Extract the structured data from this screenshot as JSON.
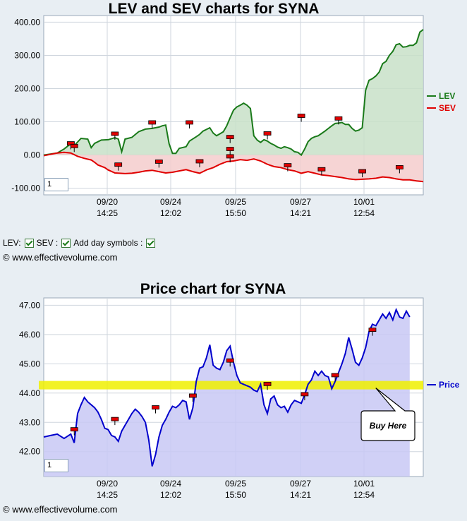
{
  "chart_data": [
    {
      "type": "line",
      "title": "LEV and SEV charts for SYNA",
      "x_tick_labels": [
        [
          "09/20",
          "14:25"
        ],
        [
          "09/24",
          "12:02"
        ],
        [
          "09/25",
          "15:50"
        ],
        [
          "09/27",
          "14:21"
        ],
        [
          "10/01",
          "12:54"
        ]
      ],
      "ylim": [
        -120,
        420
      ],
      "y_ticks": [
        "400.00",
        "300.00",
        "200.00",
        "100.00",
        "0.00",
        "-100.00"
      ],
      "legend": [
        "LEV",
        "SEV"
      ],
      "legend_position": "right",
      "grid": true,
      "input_value": "1",
      "series": [
        {
          "name": "LEV",
          "color": "#1a7a1a",
          "fill": "#c8e0c8",
          "values": [
            [
              0,
              0
            ],
            [
              4,
              6
            ],
            [
              6,
              18
            ],
            [
              8,
              34
            ],
            [
              9,
              28
            ],
            [
              11,
              50
            ],
            [
              13,
              48
            ],
            [
              14,
              22
            ],
            [
              15,
              35
            ],
            [
              17,
              45
            ],
            [
              19,
              46
            ],
            [
              21,
              52
            ],
            [
              22,
              48
            ],
            [
              23,
              10
            ],
            [
              24,
              48
            ],
            [
              26,
              53
            ],
            [
              28,
              70
            ],
            [
              30,
              78
            ],
            [
              32,
              80
            ],
            [
              34,
              84
            ],
            [
              35,
              88
            ],
            [
              36,
              90
            ],
            [
              37,
              34
            ],
            [
              38,
              5
            ],
            [
              39,
              5
            ],
            [
              40,
              20
            ],
            [
              42,
              25
            ],
            [
              43,
              42
            ],
            [
              45,
              55
            ],
            [
              46,
              62
            ],
            [
              47,
              72
            ],
            [
              49,
              82
            ],
            [
              50,
              66
            ],
            [
              51,
              58
            ],
            [
              52,
              64
            ],
            [
              53,
              70
            ],
            [
              54,
              88
            ],
            [
              55,
              112
            ],
            [
              56,
              135
            ],
            [
              57,
              145
            ],
            [
              58,
              150
            ],
            [
              59,
              156
            ],
            [
              60,
              150
            ],
            [
              61,
              140
            ],
            [
              62,
              58
            ],
            [
              63,
              45
            ],
            [
              64,
              38
            ],
            [
              65,
              46
            ],
            [
              66,
              42
            ],
            [
              67,
              35
            ],
            [
              68,
              30
            ],
            [
              69,
              24
            ],
            [
              70,
              20
            ],
            [
              71,
              25
            ],
            [
              72,
              22
            ],
            [
              73,
              18
            ],
            [
              74,
              10
            ],
            [
              75,
              8
            ],
            [
              76,
              0
            ],
            [
              77,
              18
            ],
            [
              78,
              40
            ],
            [
              79,
              50
            ],
            [
              80,
              55
            ],
            [
              81,
              58
            ],
            [
              82,
              65
            ],
            [
              83,
              72
            ],
            [
              84,
              80
            ],
            [
              85,
              88
            ],
            [
              86,
              95
            ],
            [
              87,
              96
            ],
            [
              88,
              98
            ],
            [
              89,
              92
            ],
            [
              90,
              92
            ],
            [
              91,
              80
            ],
            [
              92,
              72
            ],
            [
              93,
              75
            ],
            [
              94,
              82
            ],
            [
              95,
              195
            ],
            [
              96,
              225
            ],
            [
              97,
              230
            ],
            [
              98,
              238
            ],
            [
              99,
              250
            ],
            [
              100,
              275
            ],
            [
              101,
              282
            ],
            [
              102,
              300
            ],
            [
              103,
              312
            ],
            [
              104,
              332
            ],
            [
              105,
              335
            ],
            [
              106,
              325
            ],
            [
              107,
              326
            ],
            [
              108,
              330
            ],
            [
              109,
              330
            ],
            [
              110,
              338
            ],
            [
              111,
              370
            ],
            [
              112,
              378
            ]
          ]
        },
        {
          "name": "SEV",
          "color": "#e00000",
          "fill": "#f4cccc",
          "values": [
            [
              0,
              -2
            ],
            [
              4,
              6
            ],
            [
              6,
              8
            ],
            [
              8,
              6
            ],
            [
              10,
              -4
            ],
            [
              12,
              -10
            ],
            [
              14,
              -15
            ],
            [
              15,
              -22
            ],
            [
              16,
              -30
            ],
            [
              18,
              -38
            ],
            [
              19,
              -45
            ],
            [
              21,
              -54
            ],
            [
              24,
              -56
            ],
            [
              26,
              -55
            ],
            [
              28,
              -52
            ],
            [
              30,
              -48
            ],
            [
              32,
              -46
            ],
            [
              34,
              -50
            ],
            [
              36,
              -54
            ],
            [
              38,
              -52
            ],
            [
              40,
              -48
            ],
            [
              42,
              -44
            ],
            [
              44,
              -50
            ],
            [
              46,
              -55
            ],
            [
              47,
              -50
            ],
            [
              48,
              -45
            ],
            [
              50,
              -38
            ],
            [
              52,
              -28
            ],
            [
              54,
              -20
            ],
            [
              56,
              -18
            ],
            [
              58,
              -14
            ],
            [
              60,
              -16
            ],
            [
              62,
              -12
            ],
            [
              64,
              -18
            ],
            [
              66,
              -28
            ],
            [
              68,
              -35
            ],
            [
              70,
              -38
            ],
            [
              72,
              -44
            ],
            [
              74,
              -48
            ],
            [
              76,
              -55
            ],
            [
              78,
              -50
            ],
            [
              80,
              -55
            ],
            [
              82,
              -60
            ],
            [
              84,
              -62
            ],
            [
              86,
              -65
            ],
            [
              88,
              -68
            ],
            [
              90,
              -72
            ],
            [
              92,
              -74
            ],
            [
              94,
              -73
            ],
            [
              96,
              -72
            ],
            [
              98,
              -70
            ],
            [
              100,
              -66
            ],
            [
              102,
              -68
            ],
            [
              104,
              -72
            ],
            [
              106,
              -75
            ],
            [
              108,
              -75
            ],
            [
              110,
              -78
            ],
            [
              112,
              -80
            ]
          ]
        }
      ]
    },
    {
      "type": "line",
      "title": "Price chart for SYNA",
      "x_tick_labels": [
        [
          "09/20",
          "14:25"
        ],
        [
          "09/24",
          "12:02"
        ],
        [
          "09/25",
          "15:50"
        ],
        [
          "09/27",
          "14:21"
        ],
        [
          "10/01",
          "12:54"
        ]
      ],
      "ylim": [
        41.15,
        47.25
      ],
      "y_ticks": [
        "47.00",
        "46.00",
        "45.00",
        "44.00",
        "43.00",
        "42.00"
      ],
      "legend": [
        "Price"
      ],
      "legend_position": "right",
      "grid": true,
      "highlight_level": 44.27,
      "callout": "Buy Here",
      "input_value": "1",
      "series": [
        {
          "name": "Price",
          "color": "#0000cc",
          "fill": "#c8c8f4",
          "values": [
            [
              0,
              42.5
            ],
            [
              2,
              42.55
            ],
            [
              4,
              42.6
            ],
            [
              6,
              42.45
            ],
            [
              8,
              42.6
            ],
            [
              9,
              42.3
            ],
            [
              10,
              43.3
            ],
            [
              11,
              43.6
            ],
            [
              12,
              43.85
            ],
            [
              13,
              43.7
            ],
            [
              14,
              43.6
            ],
            [
              15,
              43.5
            ],
            [
              16,
              43.35
            ],
            [
              17,
              43.1
            ],
            [
              18,
              42.8
            ],
            [
              19,
              42.75
            ],
            [
              20,
              42.55
            ],
            [
              21,
              42.5
            ],
            [
              22,
              42.35
            ],
            [
              23,
              42.7
            ],
            [
              24,
              42.9
            ],
            [
              25,
              43.1
            ],
            [
              26,
              43.3
            ],
            [
              27,
              43.45
            ],
            [
              28,
              43.35
            ],
            [
              29,
              43.2
            ],
            [
              30,
              43.0
            ],
            [
              31,
              42.4
            ],
            [
              32,
              41.5
            ],
            [
              33,
              41.9
            ],
            [
              34,
              42.5
            ],
            [
              35,
              42.9
            ],
            [
              36,
              43.1
            ],
            [
              37,
              43.35
            ],
            [
              38,
              43.55
            ],
            [
              39,
              43.5
            ],
            [
              40,
              43.6
            ],
            [
              41,
              43.75
            ],
            [
              42,
              43.7
            ],
            [
              43,
              43.1
            ],
            [
              44,
              43.5
            ],
            [
              45,
              44.4
            ],
            [
              46,
              44.85
            ],
            [
              47,
              44.9
            ],
            [
              48,
              45.2
            ],
            [
              49,
              45.65
            ],
            [
              50,
              44.95
            ],
            [
              51,
              44.85
            ],
            [
              52,
              44.8
            ],
            [
              53,
              45.05
            ],
            [
              54,
              45.45
            ],
            [
              55,
              45.6
            ],
            [
              56,
              45.05
            ],
            [
              57,
              44.6
            ],
            [
              58,
              44.35
            ],
            [
              59,
              44.3
            ],
            [
              60,
              44.25
            ],
            [
              61,
              44.2
            ],
            [
              62,
              44.1
            ],
            [
              63,
              44.05
            ],
            [
              64,
              44.3
            ],
            [
              65,
              43.6
            ],
            [
              66,
              43.3
            ],
            [
              67,
              43.8
            ],
            [
              68,
              43.9
            ],
            [
              69,
              43.6
            ],
            [
              70,
              43.5
            ],
            [
              71,
              43.55
            ],
            [
              72,
              43.35
            ],
            [
              73,
              43.6
            ],
            [
              74,
              43.75
            ],
            [
              75,
              43.7
            ],
            [
              76,
              43.65
            ],
            [
              77,
              43.95
            ],
            [
              78,
              44.3
            ],
            [
              79,
              44.45
            ],
            [
              80,
              44.75
            ],
            [
              81,
              44.6
            ],
            [
              82,
              44.75
            ],
            [
              83,
              44.6
            ],
            [
              84,
              44.55
            ],
            [
              85,
              44.15
            ],
            [
              86,
              44.4
            ],
            [
              87,
              44.7
            ],
            [
              88,
              45.0
            ],
            [
              89,
              45.35
            ],
            [
              90,
              45.9
            ],
            [
              91,
              45.5
            ],
            [
              92,
              45.05
            ],
            [
              93,
              44.95
            ],
            [
              94,
              45.2
            ],
            [
              95,
              45.55
            ],
            [
              96,
              46.1
            ],
            [
              97,
              46.35
            ],
            [
              98,
              46.3
            ],
            [
              99,
              46.5
            ],
            [
              100,
              46.7
            ],
            [
              101,
              46.55
            ],
            [
              102,
              46.75
            ],
            [
              103,
              46.5
            ],
            [
              104,
              46.85
            ],
            [
              105,
              46.6
            ],
            [
              106,
              46.55
            ],
            [
              107,
              46.8
            ],
            [
              108,
              46.6
            ]
          ]
        }
      ]
    }
  ],
  "lev_markers": [
    [
      8,
      34
    ],
    [
      9,
      26
    ],
    [
      21,
      63
    ],
    [
      32,
      97
    ],
    [
      43,
      97
    ],
    [
      55,
      53
    ],
    [
      55,
      17
    ],
    [
      66,
      64
    ],
    [
      76,
      117
    ],
    [
      87,
      109
    ]
  ],
  "sev_markers": [
    [
      22,
      -30
    ],
    [
      34,
      -21
    ],
    [
      46,
      -20
    ],
    [
      55,
      -5
    ],
    [
      72,
      -32
    ],
    [
      82,
      -44
    ],
    [
      94,
      -50
    ],
    [
      105,
      -38
    ]
  ],
  "price_markers": [
    [
      9,
      42.75
    ],
    [
      21,
      43.1
    ],
    [
      33,
      43.5
    ],
    [
      44,
      43.9
    ],
    [
      55,
      45.1
    ],
    [
      66,
      44.3
    ],
    [
      77,
      43.95
    ],
    [
      86,
      44.6
    ],
    [
      97,
      46.15
    ]
  ],
  "controls": {
    "lev_label": "LEV:",
    "sev_label": "SEV :",
    "day_symbols_label": "Add day symbols :"
  },
  "copyright": "© www.effectivevolume.com"
}
